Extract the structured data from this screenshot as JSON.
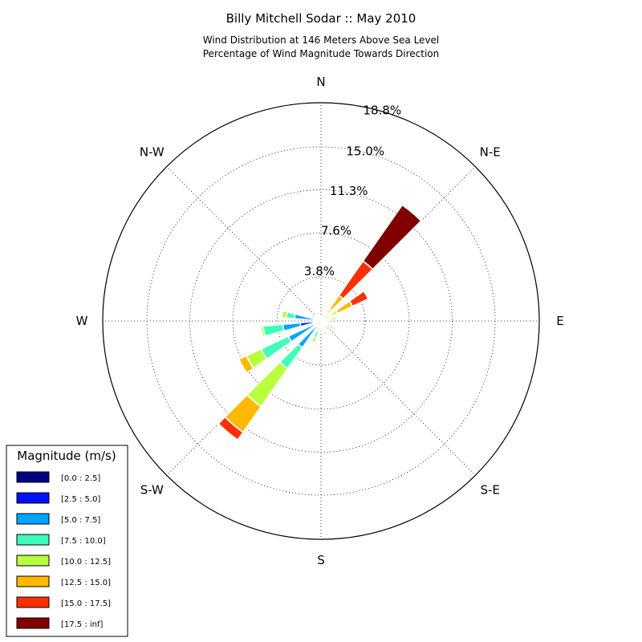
{
  "chart_data": {
    "type": "windrose",
    "title": "Billy Mitchell Sodar :: May 2010",
    "subtitle_lines": [
      "Wind Distribution at 146 Meters Above Sea Level",
      "Percentage of Wind Magnitude Towards Direction"
    ],
    "radial_ticks": [
      "3.8%",
      "7.6%",
      "11.3%",
      "15.0%",
      "18.8%"
    ],
    "radial_tick_values": [
      3.8,
      7.6,
      11.3,
      15.0,
      18.8
    ],
    "r_max": 18.8,
    "direction_labels": [
      {
        "label": "N",
        "angle": 0
      },
      {
        "label": "N-E",
        "angle": 45
      },
      {
        "label": "E",
        "angle": 90
      },
      {
        "label": "S-E",
        "angle": 135
      },
      {
        "label": "S",
        "angle": 180
      },
      {
        "label": "S-W",
        "angle": 225
      },
      {
        "label": "W",
        "angle": 270
      },
      {
        "label": "N-W",
        "angle": 315
      }
    ],
    "legend": {
      "title": "Magnitude (m/s)",
      "placement": "bottom-left",
      "bins": [
        {
          "label": "[0.0 : 2.5]",
          "color": "#000080"
        },
        {
          "label": "[2.5 : 5.0]",
          "color": "#0010ff"
        },
        {
          "label": "[5.0 : 7.5]",
          "color": "#00a4ff"
        },
        {
          "label": "[7.5 : 10.0]",
          "color": "#3dffb9"
        },
        {
          "label": "[10.0 : 12.5]",
          "color": "#b9ff3d"
        },
        {
          "label": "[12.5 : 15.0]",
          "color": "#ffb900"
        },
        {
          "label": "[15.0 : 17.5]",
          "color": "#ff3000"
        },
        {
          "label": "[17.5 : inf]",
          "color": "#800000"
        }
      ]
    },
    "sector_width_deg": 10,
    "sectors": [
      {
        "direction": 0,
        "cumulative": [
          0.3,
          0.4,
          0.45,
          0.5,
          0.5,
          0.5,
          0.5,
          0.5
        ]
      },
      {
        "direction": 20,
        "cumulative": [
          0.3,
          0.5,
          0.55,
          0.6,
          0.6,
          0.6,
          0.6,
          0.6
        ]
      },
      {
        "direction": 40,
        "cumulative": [
          0.3,
          0.5,
          0.7,
          0.9,
          1.3,
          2.7,
          6.3,
          12.2
        ]
      },
      {
        "direction": 60,
        "cumulative": [
          0.3,
          0.5,
          0.8,
          1.0,
          1.6,
          3.0,
          4.5,
          4.6
        ]
      },
      {
        "direction": 80,
        "cumulative": [
          0.2,
          0.4,
          0.6,
          0.8,
          1.3,
          1.3,
          1.3,
          1.3
        ]
      },
      {
        "direction": 100,
        "cumulative": [
          0.2,
          0.4,
          0.5,
          0.6,
          0.6,
          0.6,
          0.6,
          0.6
        ]
      },
      {
        "direction": 120,
        "cumulative": [
          0.3,
          0.6,
          0.9,
          1.2,
          1.4,
          1.4,
          1.4,
          1.4
        ]
      },
      {
        "direction": 140,
        "cumulative": [
          0.3,
          0.4,
          0.5,
          0.7,
          0.7,
          0.7,
          0.7,
          0.7
        ]
      },
      {
        "direction": 160,
        "cumulative": [
          0.2,
          0.4,
          0.6,
          0.9,
          1.2,
          1.2,
          1.2,
          1.2
        ]
      },
      {
        "direction": 180,
        "cumulative": [
          0.2,
          0.4,
          0.6,
          0.8,
          0.8,
          0.8,
          0.8,
          0.8
        ]
      },
      {
        "direction": 200,
        "cumulative": [
          0.3,
          0.6,
          0.9,
          1.5,
          1.9,
          1.9,
          1.9,
          1.9
        ]
      },
      {
        "direction": 220,
        "cumulative": [
          0.3,
          0.5,
          2.8,
          5.0,
          9.0,
          11.7,
          12.5,
          12.5
        ]
      },
      {
        "direction": 240,
        "cumulative": [
          0.3,
          0.6,
          3.1,
          5.7,
          7.1,
          7.8,
          7.8,
          7.8
        ]
      },
      {
        "direction": 260,
        "cumulative": [
          0.3,
          1.8,
          3.3,
          5.0,
          5.2,
          5.2,
          5.2,
          5.2
        ]
      },
      {
        "direction": 280,
        "cumulative": [
          0.3,
          0.6,
          2.3,
          3.0,
          3.4,
          3.5,
          3.6,
          3.6
        ]
      },
      {
        "direction": 300,
        "cumulative": [
          0.3,
          0.5,
          0.9,
          0.9,
          0.9,
          0.9,
          0.9,
          0.9
        ]
      },
      {
        "direction": 320,
        "cumulative": [
          0.3,
          0.5,
          0.6,
          0.6,
          0.6,
          0.6,
          0.6,
          0.6
        ]
      },
      {
        "direction": 340,
        "cumulative": [
          0.2,
          0.8,
          0.8,
          0.8,
          0.8,
          0.8,
          0.8,
          0.8
        ]
      }
    ],
    "grid": true
  }
}
